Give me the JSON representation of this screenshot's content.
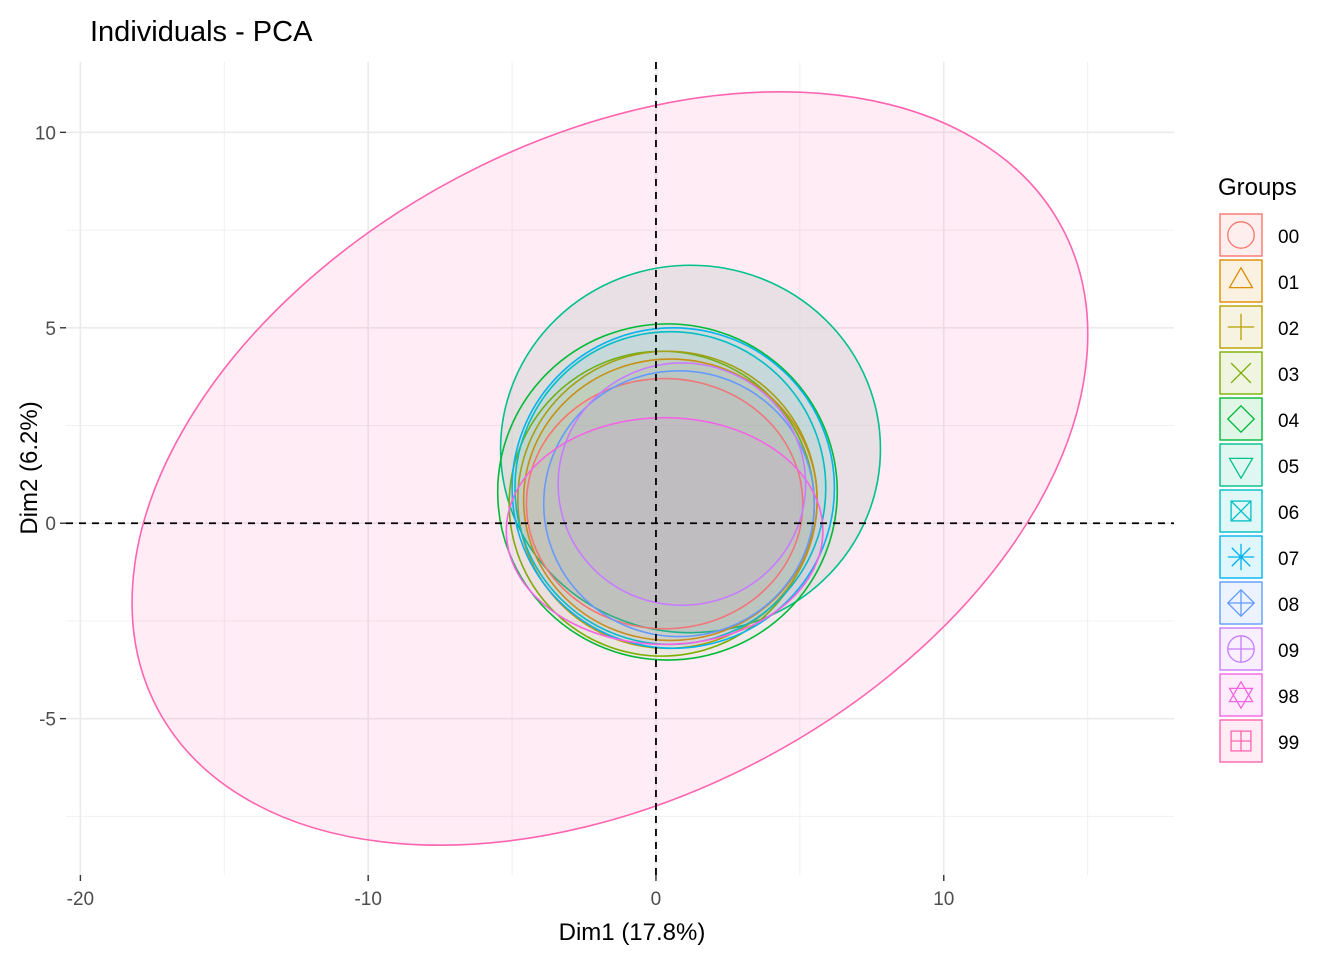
{
  "chart_data": {
    "type": "scatter",
    "title": "Individuals - PCA",
    "xlabel": "Dim1 (17.8%)",
    "ylabel": "Dim2 (6.2%)",
    "xlim": [
      -20.5,
      18
    ],
    "ylim": [
      -9,
      11.8
    ],
    "x_ticks": [
      -20,
      -10,
      0,
      10
    ],
    "x_tick_labels": [
      "-20",
      "-10",
      "0",
      "10"
    ],
    "y_ticks": [
      -5,
      0,
      5,
      10
    ],
    "y_tick_labels": [
      "-5",
      "0",
      "5",
      "10"
    ],
    "grid": true,
    "reference_lines": {
      "x": 0,
      "y": 0,
      "style": "dashed"
    },
    "legend": {
      "title": "Groups",
      "placement": "right",
      "entries": [
        {
          "name": "00",
          "color": "#F8766D",
          "shape": "circle-open"
        },
        {
          "name": "01",
          "color": "#DE8C00",
          "shape": "triangle-open"
        },
        {
          "name": "02",
          "color": "#B79F00",
          "shape": "plus"
        },
        {
          "name": "03",
          "color": "#7CAE00",
          "shape": "cross"
        },
        {
          "name": "04",
          "color": "#00BA38",
          "shape": "diamond-open"
        },
        {
          "name": "05",
          "color": "#00C08B",
          "shape": "triangle-down-open"
        },
        {
          "name": "06",
          "color": "#00BFC4",
          "shape": "square-cross"
        },
        {
          "name": "07",
          "color": "#00B4F0",
          "shape": "asterisk"
        },
        {
          "name": "08",
          "color": "#619CFF",
          "shape": "diamond-plus"
        },
        {
          "name": "09",
          "color": "#C77CFF",
          "shape": "circle-plus"
        },
        {
          "name": "98",
          "color": "#F564E3",
          "shape": "star-of-david"
        },
        {
          "name": "99",
          "color": "#FF64B0",
          "shape": "square-plus"
        }
      ]
    },
    "series": [
      {
        "name": "00",
        "centroid": [
          0.3,
          0.6
        ],
        "ellipse": {
          "cx": 0.3,
          "cy": 0.5,
          "rx": 4.8,
          "ry": 3.2,
          "angle": 0
        }
      },
      {
        "name": "01",
        "centroid": [
          0.5,
          0.8
        ],
        "ellipse": {
          "cx": 0.5,
          "cy": 0.6,
          "rx": 5.1,
          "ry": 3.6,
          "angle": 0
        }
      },
      {
        "name": "02",
        "centroid": [
          0.4,
          0.7
        ],
        "ellipse": {
          "cx": 0.4,
          "cy": 0.6,
          "rx": 5.2,
          "ry": 3.8,
          "angle": 0
        }
      },
      {
        "name": "03",
        "centroid": [
          0.3,
          0.5
        ],
        "ellipse": {
          "cx": 0.2,
          "cy": 0.5,
          "rx": 5.3,
          "ry": 3.9,
          "angle": 0
        }
      },
      {
        "name": "04",
        "centroid": [
          0.2,
          0.4
        ],
        "ellipse": {
          "cx": 0.4,
          "cy": 0.8,
          "rx": 5.9,
          "ry": 4.3,
          "angle": 0
        }
      },
      {
        "name": "05",
        "centroid": [
          0.4,
          0.7
        ],
        "ellipse": {
          "cx": 1.2,
          "cy": 1.9,
          "rx": 6.6,
          "ry": 4.7,
          "angle": 0
        }
      },
      {
        "name": "06",
        "centroid": [
          0.3,
          0.6
        ],
        "ellipse": {
          "cx": 0.5,
          "cy": 0.9,
          "rx": 5.4,
          "ry": 4.0,
          "angle": 0
        }
      },
      {
        "name": "07",
        "centroid": [
          0.4,
          0.8
        ],
        "ellipse": {
          "cx": 0.6,
          "cy": 0.9,
          "rx": 5.6,
          "ry": 4.1,
          "angle": 0
        }
      },
      {
        "name": "08",
        "centroid": [
          0.4,
          0.4
        ],
        "ellipse": {
          "cx": 0.8,
          "cy": 0.5,
          "rx": 4.7,
          "ry": 3.4,
          "angle": 0
        }
      },
      {
        "name": "09",
        "centroid": [
          1.3,
          0.8
        ],
        "ellipse": {
          "cx": 0.9,
          "cy": 1.0,
          "rx": 4.3,
          "ry": 3.1,
          "angle": 0
        }
      },
      {
        "name": "98",
        "centroid": [
          0.1,
          -0.6
        ],
        "ellipse": {
          "cx": 0.3,
          "cy": -0.2,
          "rx": 5.5,
          "ry": 2.9,
          "angle": 0
        }
      },
      {
        "name": "99",
        "centroid": [
          -1.0,
          1.4
        ],
        "ellipse": {
          "cx": -1.6,
          "cy": 1.4,
          "rx": 17.8,
          "ry": 8.4,
          "angle": -28
        }
      }
    ]
  }
}
